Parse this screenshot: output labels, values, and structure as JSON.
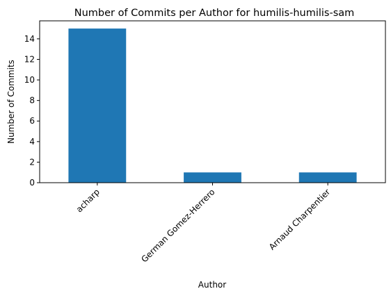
{
  "chart_data": {
    "type": "bar",
    "title": "Number of Commits per Author for humilis-humilis-sam",
    "xlabel": "Author",
    "ylabel": "Number of Commits",
    "categories": [
      "acharp",
      "German Gomez-Herrero",
      "Arnaud Charpentier"
    ],
    "values": [
      15,
      1,
      1
    ],
    "ylim": [
      0,
      15.75
    ],
    "yticks": [
      0,
      2,
      4,
      6,
      8,
      10,
      12,
      14
    ],
    "grid": false,
    "bar_color": "#1f77b4"
  }
}
